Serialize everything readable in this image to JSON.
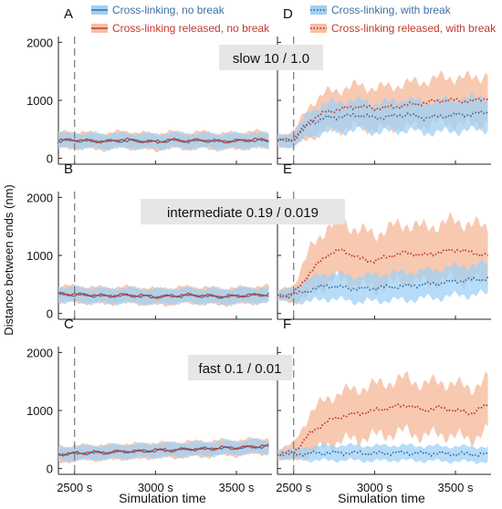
{
  "figure": {
    "ylabel": "Distance between ends (nm)",
    "xlabel": "Simulation time"
  },
  "legend_left": [
    {
      "label": "Cross-linking, no break",
      "color": "#4a8fd4",
      "style": "solid"
    },
    {
      "label": "Cross-linking released, no break",
      "color": "#d9534f",
      "style": "solid"
    }
  ],
  "legend_right": [
    {
      "label": "Cross-linking, with break",
      "color": "#4a8fd4",
      "style": "dotted"
    },
    {
      "label": "Cross-linking released, with break",
      "color": "#d9534f",
      "style": "dotted"
    }
  ],
  "row_labels": [
    "slow 10 / 1.0",
    "intermediate 0.19 / 0.019",
    "fast 0.1 / 0.01"
  ],
  "colors": {
    "blue_line": "#3f6fa3",
    "blue_band": "#9fd0f5",
    "red_line": "#c0392b",
    "red_band": "#f6bfa3",
    "overlap_band": "#b9b1b3",
    "break_line": "#777777",
    "label_box": "#e6e6e6"
  },
  "chart_data": [
    {
      "panel": "A",
      "type": "line",
      "x_ticks": [
        "2500 s",
        "3000 s",
        "3500 s"
      ],
      "x_tick_values": [
        2500,
        3000,
        3500
      ],
      "xlim": [
        2400,
        3720
      ],
      "y_ticks": [
        "0",
        "1000",
        "2000"
      ],
      "y_tick_values": [
        0,
        1000,
        2000
      ],
      "ylim": [
        -100,
        2100
      ],
      "break_time": 2500,
      "series": [
        {
          "name": "Cross-linking, no break",
          "x_start": 2400,
          "x_end": 3700,
          "mean": [
            300,
            310,
            300,
            295,
            305,
            300,
            290,
            310,
            300,
            305,
            295,
            300,
            310,
            300
          ],
          "spread": [
            130,
            130,
            130,
            130,
            130,
            130,
            130,
            130,
            130,
            130,
            130,
            130,
            130,
            130
          ]
        },
        {
          "name": "Cross-linking released, no break",
          "x_start": 2400,
          "x_end": 3700,
          "mean": [
            310,
            320,
            300,
            290,
            330,
            300,
            280,
            320,
            300,
            320,
            290,
            300,
            330,
            310
          ],
          "spread": [
            140,
            140,
            140,
            140,
            140,
            140,
            140,
            140,
            140,
            140,
            140,
            140,
            140,
            140
          ]
        }
      ]
    },
    {
      "panel": "D",
      "type": "line",
      "x_ticks": [
        "2500 s",
        "3000 s",
        "3500 s"
      ],
      "x_tick_values": [
        2500,
        3000,
        3500
      ],
      "xlim": [
        2400,
        3720
      ],
      "y_ticks": [
        "0",
        "1000",
        "2000"
      ],
      "y_tick_values": [
        0,
        1000,
        2000
      ],
      "ylim": [
        -100,
        2100
      ],
      "break_time": 2500,
      "series": [
        {
          "name": "Cross-linking, with break",
          "x_start": 2400,
          "x_end": 3700,
          "mean": [
            300,
            320,
            600,
            700,
            720,
            750,
            700,
            720,
            760,
            700,
            720,
            750,
            760,
            800
          ],
          "spread": [
            100,
            120,
            220,
            250,
            260,
            260,
            250,
            260,
            270,
            260,
            270,
            280,
            280,
            290
          ]
        },
        {
          "name": "Cross-linking released, with break",
          "x_start": 2400,
          "x_end": 3700,
          "mean": [
            300,
            330,
            650,
            800,
            850,
            900,
            860,
            880,
            920,
            950,
            1000,
            1000,
            980,
            1050
          ],
          "spread": [
            100,
            130,
            280,
            330,
            350,
            360,
            350,
            360,
            370,
            380,
            390,
            400,
            400,
            410
          ]
        }
      ]
    },
    {
      "panel": "B",
      "type": "line",
      "x_ticks": [
        "2500 s",
        "3000 s",
        "3500 s"
      ],
      "x_tick_values": [
        2500,
        3000,
        3500
      ],
      "xlim": [
        2400,
        3720
      ],
      "y_ticks": [
        "0",
        "1000",
        "2000"
      ],
      "y_tick_values": [
        0,
        1000,
        2000
      ],
      "ylim": [
        -100,
        2100
      ],
      "break_time": 2500,
      "series": [
        {
          "name": "Cross-linking, no break",
          "x_start": 2400,
          "x_end": 3700,
          "mean": [
            330,
            320,
            310,
            300,
            310,
            300,
            290,
            300,
            310,
            300,
            290,
            300,
            310,
            320
          ],
          "spread": [
            130,
            130,
            130,
            130,
            130,
            130,
            130,
            130,
            130,
            130,
            130,
            130,
            130,
            130
          ]
        },
        {
          "name": "Cross-linking released, no break",
          "x_start": 2400,
          "x_end": 3700,
          "mean": [
            340,
            330,
            320,
            300,
            320,
            310,
            280,
            300,
            320,
            310,
            290,
            300,
            320,
            330
          ],
          "spread": [
            140,
            140,
            140,
            140,
            140,
            140,
            140,
            140,
            140,
            140,
            140,
            140,
            140,
            140
          ]
        }
      ]
    },
    {
      "panel": "E",
      "type": "line",
      "x_ticks": [
        "2500 s",
        "3000 s",
        "3500 s"
      ],
      "x_tick_values": [
        2500,
        3000,
        3500
      ],
      "xlim": [
        2400,
        3720
      ],
      "y_ticks": [
        "0",
        "1000",
        "2000"
      ],
      "y_tick_values": [
        0,
        1000,
        2000
      ],
      "ylim": [
        -100,
        2100
      ],
      "break_time": 2500,
      "series": [
        {
          "name": "Cross-linking, with break",
          "x_start": 2400,
          "x_end": 3700,
          "mean": [
            300,
            320,
            400,
            480,
            450,
            420,
            440,
            460,
            470,
            500,
            520,
            560,
            580,
            600
          ],
          "spread": [
            80,
            120,
            200,
            220,
            220,
            220,
            230,
            230,
            240,
            240,
            250,
            250,
            260,
            260
          ]
        },
        {
          "name": "Cross-linking released, with break",
          "x_start": 2400,
          "x_end": 3700,
          "mean": [
            300,
            340,
            700,
            1000,
            1100,
            950,
            900,
            1000,
            1050,
            1000,
            1050,
            1100,
            1050,
            1000
          ],
          "spread": [
            80,
            150,
            400,
            480,
            500,
            480,
            470,
            480,
            500,
            480,
            490,
            500,
            490,
            480
          ]
        }
      ]
    },
    {
      "panel": "C",
      "type": "line",
      "x_ticks": [
        "2500 s",
        "3000 s",
        "3500 s"
      ],
      "x_tick_values": [
        2500,
        3000,
        3500
      ],
      "xlim": [
        2400,
        3720
      ],
      "y_ticks": [
        "0",
        "1000",
        "2000"
      ],
      "y_tick_values": [
        0,
        1000,
        2000
      ],
      "ylim": [
        -100,
        2100
      ],
      "break_time": 2500,
      "series": [
        {
          "name": "Cross-linking, no break",
          "x_start": 2400,
          "x_end": 3700,
          "mean": [
            250,
            260,
            270,
            280,
            290,
            300,
            310,
            320,
            330,
            340,
            350,
            360,
            370,
            380
          ],
          "spread": [
            120,
            120,
            120,
            120,
            120,
            120,
            120,
            120,
            120,
            120,
            120,
            120,
            120,
            120
          ]
        },
        {
          "name": "Cross-linking released, no break",
          "x_start": 2400,
          "x_end": 3700,
          "mean": [
            240,
            260,
            280,
            270,
            300,
            290,
            320,
            310,
            340,
            330,
            360,
            350,
            380,
            390
          ],
          "spread": [
            130,
            130,
            130,
            130,
            130,
            130,
            130,
            130,
            130,
            130,
            130,
            130,
            130,
            130
          ]
        }
      ]
    },
    {
      "panel": "F",
      "type": "line",
      "x_ticks": [
        "2500 s",
        "3000 s",
        "3500 s"
      ],
      "x_tick_values": [
        2500,
        3000,
        3500
      ],
      "xlim": [
        2400,
        3720
      ],
      "y_ticks": [
        "0",
        "1000",
        "2000"
      ],
      "y_tick_values": [
        0,
        1000,
        2000
      ],
      "ylim": [
        -100,
        2100
      ],
      "break_time": 2500,
      "series": [
        {
          "name": "Cross-linking, with break",
          "x_start": 2400,
          "x_end": 3700,
          "mean": [
            250,
            250,
            260,
            270,
            270,
            270,
            260,
            270,
            270,
            260,
            260,
            250,
            250,
            240
          ],
          "spread": [
            80,
            90,
            120,
            130,
            130,
            130,
            130,
            130,
            130,
            130,
            130,
            130,
            130,
            130
          ]
        },
        {
          "name": "Cross-linking released, with break",
          "x_start": 2400,
          "x_end": 3700,
          "mean": [
            250,
            280,
            600,
            800,
            900,
            950,
            1000,
            1050,
            1100,
            1000,
            1050,
            1000,
            950,
            1100
          ],
          "spread": [
            80,
            150,
            350,
            400,
            420,
            430,
            440,
            450,
            460,
            450,
            450,
            450,
            440,
            450
          ]
        }
      ]
    }
  ]
}
